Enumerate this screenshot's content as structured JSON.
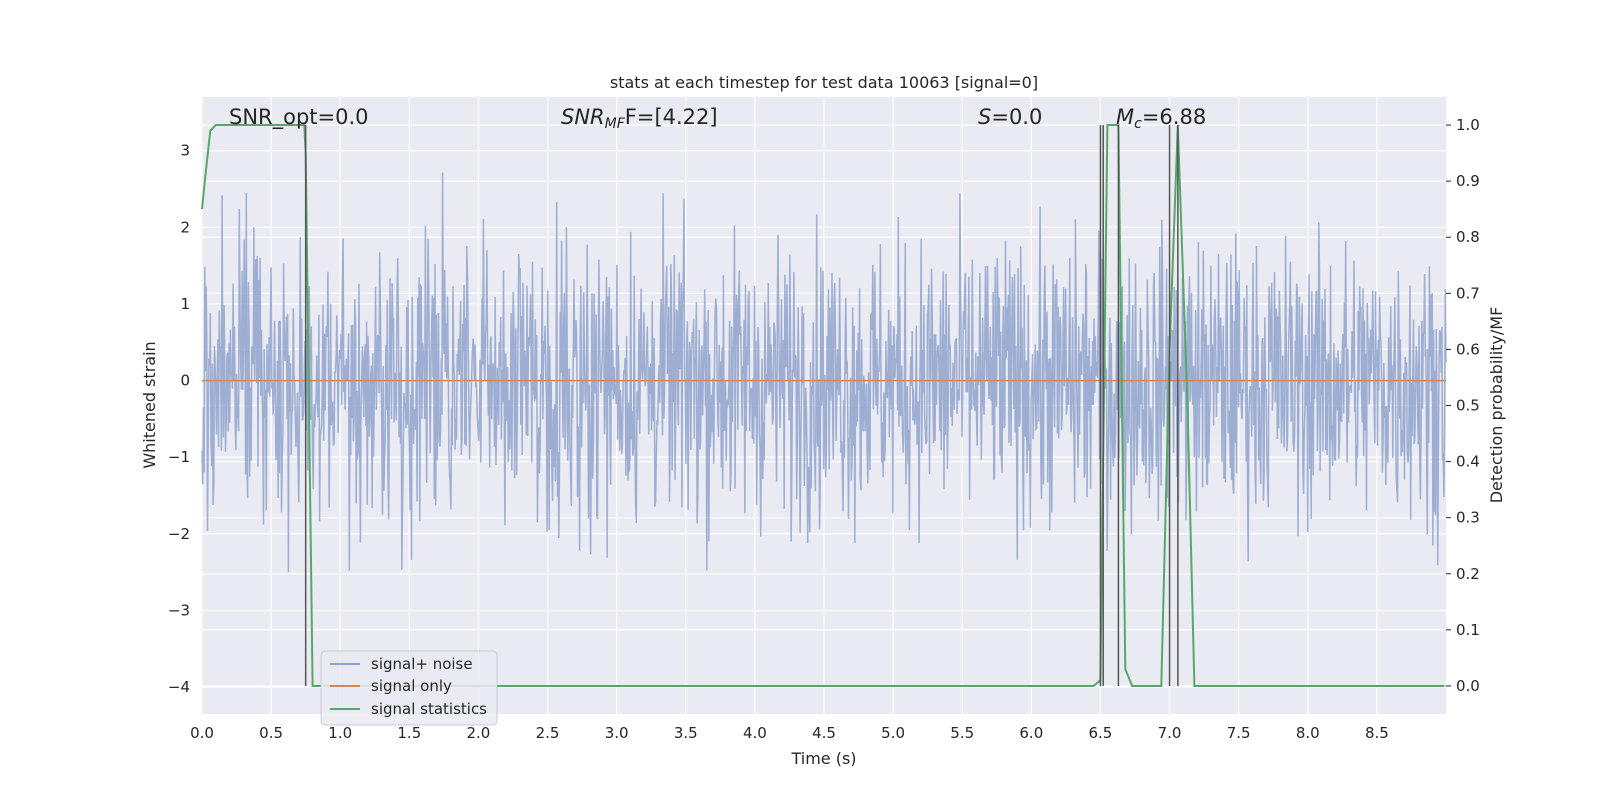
{
  "chart_data": {
    "type": "line",
    "title": "stats at each timestep for test data 10063 [signal=0]",
    "xlabel": "Time (s)",
    "ylabel_left": "Whitened strain",
    "ylabel_right": "Detection probability/MF",
    "xlim": [
      0.0,
      9.0
    ],
    "ylim_left": [
      -4.35,
      3.7
    ],
    "ylim_right": [
      -0.05,
      1.05
    ],
    "grid": true,
    "x_ticks": [
      "0.0",
      "0.5",
      "1.0",
      "1.5",
      "2.0",
      "2.5",
      "3.0",
      "3.5",
      "4.0",
      "4.5",
      "5.0",
      "5.5",
      "6.0",
      "6.5",
      "7.0",
      "7.5",
      "8.0",
      "8.5"
    ],
    "y_ticks_left": [
      "3",
      "2",
      "1",
      "0",
      "−1",
      "−2",
      "−3",
      "−4"
    ],
    "y_ticks_right": [
      "1.0",
      "0.9",
      "0.8",
      "0.7",
      "0.6",
      "0.5",
      "0.4",
      "0.3",
      "0.2",
      "0.1",
      "0.0"
    ],
    "legend_position": "lower-left",
    "annotations": {
      "snr_opt": "SNR_opt=0.0",
      "snr_mf_main": "SNR",
      "snr_mf_sub": "MF",
      "snr_mf_value": "F=[4.22]",
      "s_main": "S",
      "s_value": "=0.0",
      "mc_main": "M",
      "mc_sub": "c",
      "mc_value": "=6.88"
    },
    "series": [
      {
        "name": "signal+ noise",
        "color": "#8fa3cc",
        "description_note": "whitened noise, approximately gaussian with std ~1 over 0-9 s",
        "envelope_max_abs": 3.45
      },
      {
        "name": "signal only",
        "color": "#dd8452",
        "x": [
          0.0,
          9.0
        ],
        "y": [
          0.0,
          0.0
        ]
      },
      {
        "name": "signal statistics",
        "color": "#55a868",
        "axis": "right",
        "x": [
          0.0,
          0.02,
          0.06,
          0.1,
          0.2,
          0.4,
          0.6,
          0.74,
          0.75,
          0.8,
          0.86,
          6.45,
          6.5,
          6.55,
          6.6,
          6.63,
          6.68,
          6.73,
          6.8,
          6.94,
          7.0,
          7.06,
          7.13,
          7.18,
          7.25,
          8.99
        ],
        "y": [
          0.85,
          0.9,
          0.99,
          1.0,
          1.0,
          1.0,
          1.0,
          1.0,
          0.95,
          0.0,
          0.0,
          0.0,
          0.01,
          1.0,
          1.0,
          1.0,
          0.03,
          0.0,
          0.0,
          0.0,
          0.6,
          1.0,
          0.5,
          0.0,
          0.0,
          0.0
        ]
      }
    ],
    "vertical_markers": {
      "color": "#555555",
      "x": [
        0.75,
        6.5,
        6.52,
        6.63,
        7.0,
        7.06
      ]
    }
  }
}
